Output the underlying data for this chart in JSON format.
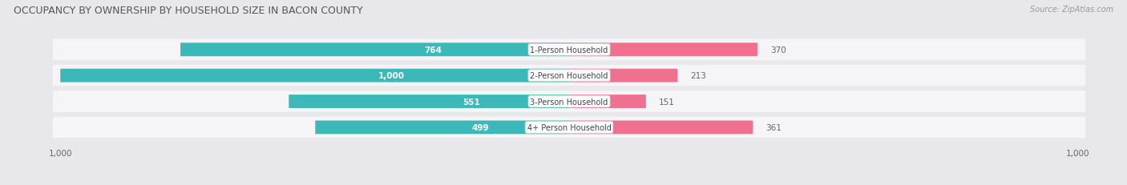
{
  "title": "OCCUPANCY BY OWNERSHIP BY HOUSEHOLD SIZE IN BACON COUNTY",
  "source": "Source: ZipAtlas.com",
  "categories": [
    "1-Person Household",
    "2-Person Household",
    "3-Person Household",
    "4+ Person Household"
  ],
  "owner_values": [
    764,
    1000,
    551,
    499
  ],
  "renter_values": [
    370,
    213,
    151,
    361
  ],
  "owner_color": "#3db8b8",
  "renter_color": "#f07090",
  "renter_color_light": "#f0b0c0",
  "row_bg_color": "#e8e8ec",
  "row_inner_color": "#f5f5f8",
  "xlim": 1000,
  "bar_height": 0.52,
  "title_fontsize": 9.0,
  "label_fontsize": 7.5,
  "tick_fontsize": 7.5,
  "source_fontsize": 7.0,
  "legend_fontsize": 7.5,
  "fig_bg_color": "#e8e8ec",
  "owner_label_color_inside": "#ffffff",
  "owner_label_color_outside": "#666666",
  "renter_label_color": "#666666",
  "cat_label_color": "#444444"
}
